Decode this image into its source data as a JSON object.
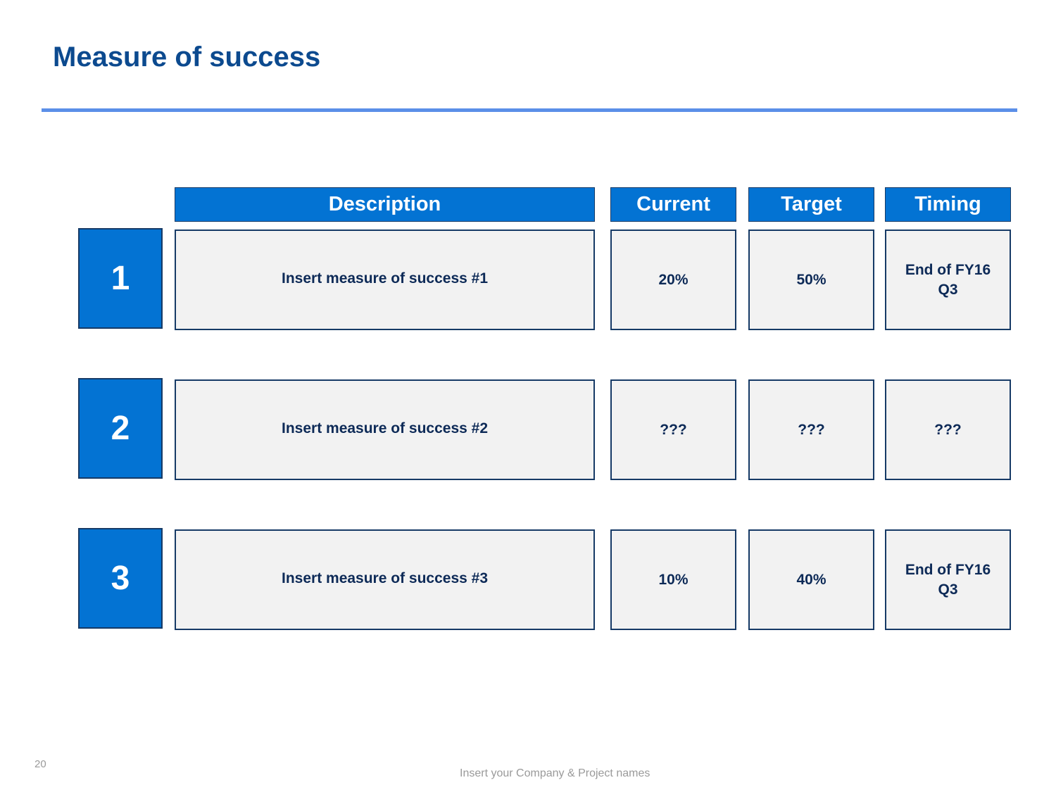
{
  "slide": {
    "title": "Measure of success",
    "page_number": "20",
    "footer": "Insert your Company & Project names"
  },
  "table": {
    "headers": {
      "description": "Description",
      "current": "Current",
      "target": "Target",
      "timing": "Timing"
    },
    "rows": [
      {
        "number": "1",
        "description": "Insert measure of success #1",
        "current": "20%",
        "target": "50%",
        "timing": "End of FY16 Q3"
      },
      {
        "number": "2",
        "description": "Insert measure of success #2",
        "current": "???",
        "target": "???",
        "timing": "???"
      },
      {
        "number": "3",
        "description": "Insert measure of success #3",
        "current": "10%",
        "target": "40%",
        "timing": "End of FY16 Q3"
      }
    ]
  },
  "colors": {
    "title": "#0c4a8f",
    "rule": "#5b8fe8",
    "header_fill": "#0373d3",
    "cell_fill": "#f2f2f2",
    "border": "#163a66",
    "cell_text": "#0d2a57"
  }
}
